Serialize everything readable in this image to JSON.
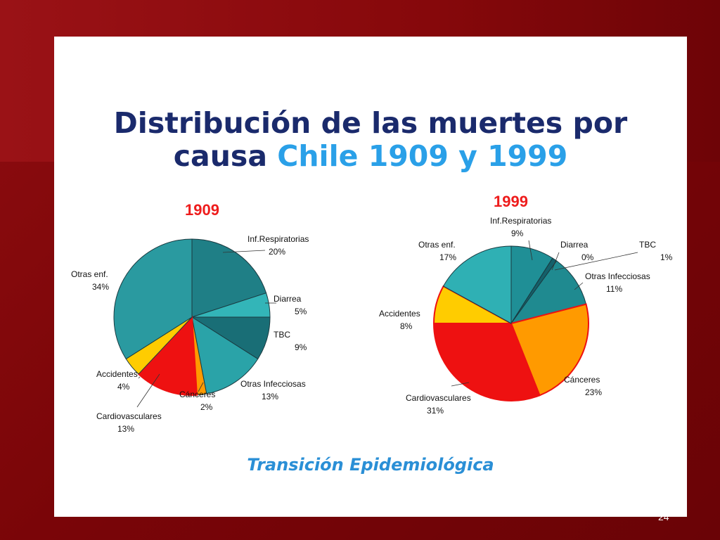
{
  "slide": {
    "title_line1": "Distribución de las muertes por",
    "title_line2_part1": "causa ",
    "title_line2_part2": "Chile 1909 y 1999",
    "footer": "Transición Epidemiológica",
    "page_number": "24"
  },
  "colors": {
    "title": "#1a2a6c",
    "title_accent": "#2aa0e8",
    "year_label": "#ee1c1c",
    "footer": "#2a8fd6"
  },
  "chart_data": [
    {
      "type": "pie",
      "title": "1909",
      "slices": [
        {
          "label": "Inf.Respiratorias",
          "value": 20,
          "value_label": "20%",
          "color": "#1f7f86"
        },
        {
          "label": "Diarrea",
          "value": 5,
          "value_label": "5%",
          "color": "#33b5b8"
        },
        {
          "label": "TBC",
          "value": 9,
          "value_label": "9%",
          "color": "#196e76"
        },
        {
          "label": "Otras Infecciosas",
          "value": 13,
          "value_label": "13%",
          "color": "#2aa3a8"
        },
        {
          "label": "Cánceres",
          "value": 2,
          "value_label": "2%",
          "color": "#ff9a00"
        },
        {
          "label": "Cardiovasculares",
          "value": 13,
          "value_label": "13%",
          "color": "#ee1111"
        },
        {
          "label": "Accidentes",
          "value": 4,
          "value_label": "4%",
          "color": "#ffcc00"
        },
        {
          "label": "Otras enf.",
          "value": 34,
          "value_label": "34%",
          "color": "#2a9aa0"
        }
      ]
    },
    {
      "type": "pie",
      "title": "1999",
      "slices": [
        {
          "label": "Inf.Respiratorias",
          "value": 9,
          "value_label": "9%",
          "color": "#1f8f96"
        },
        {
          "label": "Diarrea",
          "value": 0,
          "value_label": "0%",
          "color": "#33b5b8"
        },
        {
          "label": "TBC",
          "value": 1,
          "value_label": "1%",
          "color": "#14606a"
        },
        {
          "label": "Otras Infecciosas",
          "value": 11,
          "value_label": "11%",
          "color": "#1f8a90"
        },
        {
          "label": "Cánceres",
          "value": 23,
          "value_label": "23%",
          "color": "#ff9a00"
        },
        {
          "label": "Cardiovasculares",
          "value": 31,
          "value_label": "31%",
          "color": "#ee1111"
        },
        {
          "label": "Accidentes",
          "value": 8,
          "value_label": "8%",
          "color": "#ffcc00"
        },
        {
          "label": "Otras enf.",
          "value": 17,
          "value_label": "17%",
          "color": "#2fb0b4"
        }
      ]
    }
  ]
}
